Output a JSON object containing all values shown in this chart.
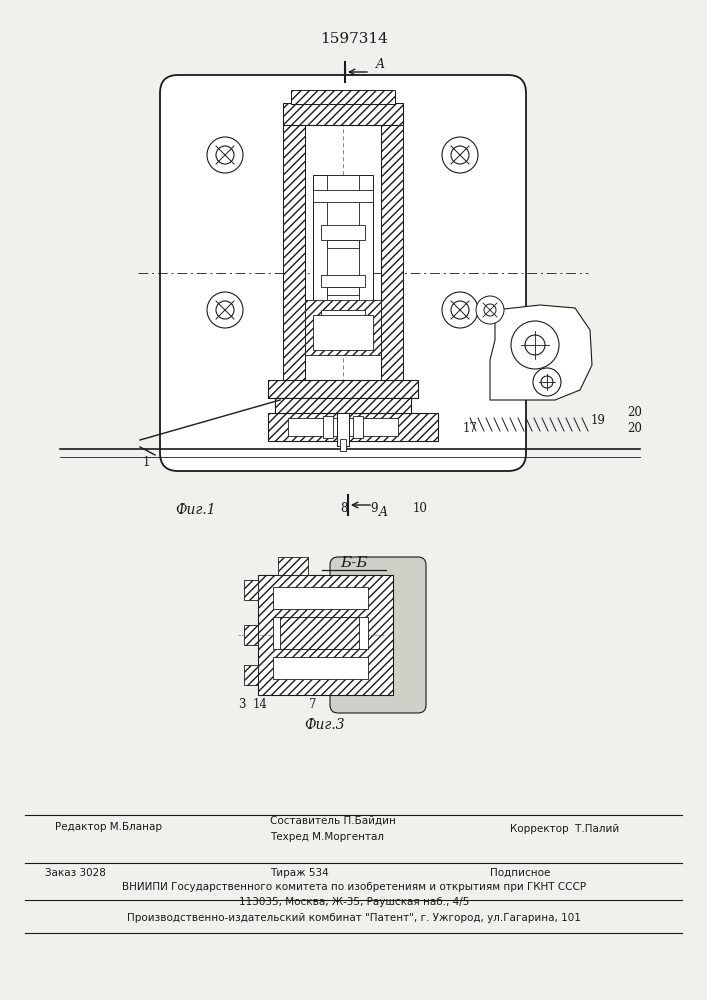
{
  "patent_number": "1597314",
  "bg_color": "#f0f0ec",
  "line_color": "#1a1a1a",
  "fig1_label": "Фиг.1",
  "fig3_label": "Фиг.3",
  "section_label": "Б-Б",
  "footer": {
    "editor": "Редактор М.Бланар",
    "author": "Составитель П.Байдин",
    "tech": "Техред М.Моргентал",
    "corrector": "Корректор  Т.Палий",
    "order": "Заказ 3028",
    "print_run": "Тираж 534",
    "subscription": "Подписное",
    "vniiipi": "ВНИИПИ Государственного комитета по изобретениям и открытиям при ГКНТ СССР",
    "address": "113035, Москва, Ж-35, Раушская наб., 4/5",
    "publisher": "Производственно-издательский комбинат \"Патент\", г. Ужгород, ул.Гагарина, 101"
  }
}
